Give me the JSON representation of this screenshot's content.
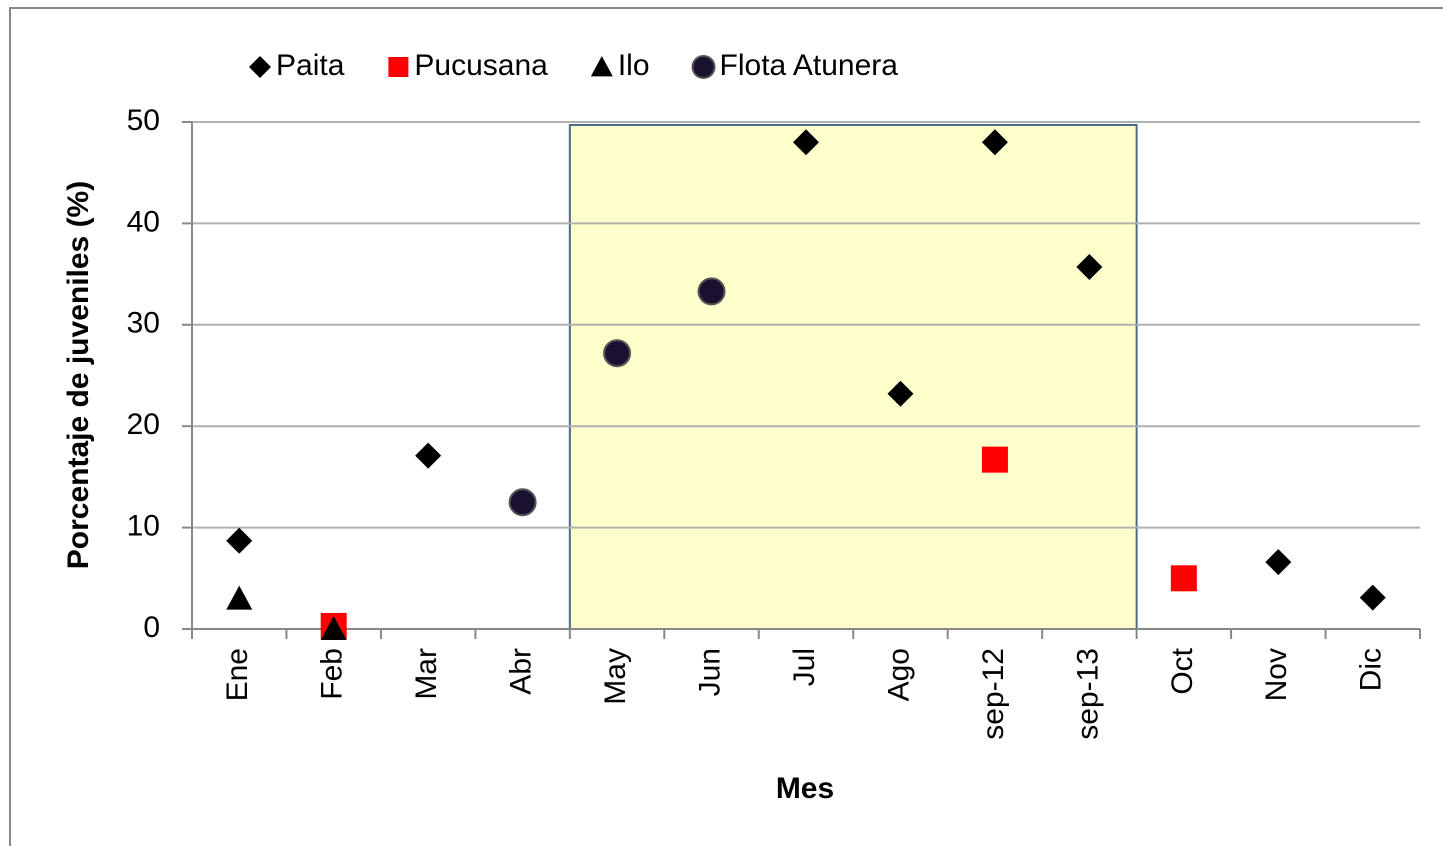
{
  "chart_data": {
    "type": "point",
    "y_label": "Porcentaje de juveniles  (%)",
    "x_label": "Mes",
    "categories": [
      "Ene",
      "Feb",
      "Mar",
      "Abr",
      "May",
      "Jun",
      "Jul",
      "Ago",
      "sep-12",
      "sep-13",
      "Oct",
      "Nov",
      "Dic"
    ],
    "series": [
      {
        "name": "Paita",
        "color": "#000000",
        "marker": "diamond",
        "values": [
          8.7,
          null,
          17.1,
          null,
          null,
          null,
          48,
          23.2,
          48,
          35.7,
          null,
          6.6,
          3.1
        ]
      },
      {
        "name": "Pucusana",
        "color": "#ff0000",
        "marker": "square",
        "values": [
          null,
          0.3,
          null,
          null,
          null,
          null,
          null,
          null,
          16.7,
          null,
          5.0,
          null,
          null
        ]
      },
      {
        "name": "Ilo",
        "color": "#000000",
        "marker": "triangle",
        "values": [
          3.0,
          0,
          null,
          null,
          null,
          null,
          null,
          null,
          null,
          null,
          null,
          null,
          null
        ]
      },
      {
        "name": "Flota Atunera",
        "color": "#1a1030",
        "marker": "circle",
        "values": [
          null,
          null,
          null,
          12.5,
          27.2,
          33.3,
          null,
          null,
          null,
          null,
          null,
          null,
          null
        ]
      }
    ],
    "ylim": [
      0,
      50
    ],
    "yticks": [
      0,
      10,
      20,
      30,
      40,
      50
    ],
    "grid": true,
    "highlight_color": "#ffffcc"
  }
}
